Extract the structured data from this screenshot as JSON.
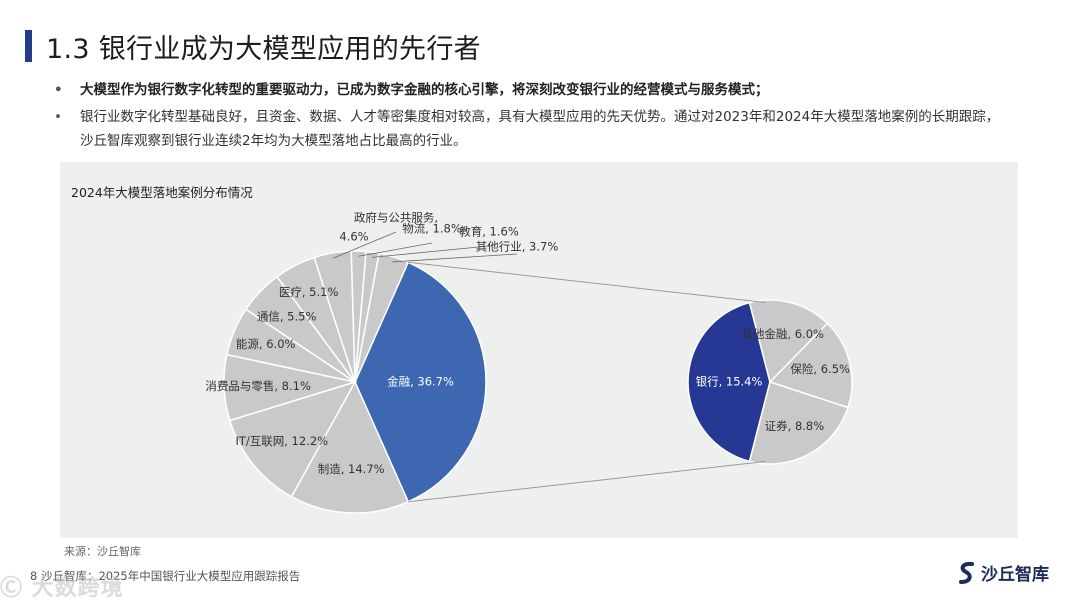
{
  "header": {
    "title": "1.3 银行业成为大模型应用的先行者"
  },
  "bullets": [
    "大模型作为银行数字化转型的重要驱动力，已成为数字金融的核心引擎，将深刻改变银行业的经营模式与服务模式；",
    "银行业数字化转型基础良好，且资金、数据、人才等密集度相对较高，具有大模型应用的先天优势。通过对2023年和2024年大模型落地案例的长期跟踪，沙丘智库观察到银行业连续2年均为大模型落地占比最高的行业。"
  ],
  "chart_data": {
    "type": "pie",
    "title": "2024年大模型落地案例分布情况",
    "colors": {
      "main": "#c9c9c9",
      "highlight": "#3d67b1",
      "bank": "#263893",
      "stroke": "#ffffff",
      "connector": "#999999"
    },
    "main_pie": [
      {
        "label": "金融, 36.7%",
        "value": 36.7
      },
      {
        "label": "制造, 14.7%",
        "value": 14.7
      },
      {
        "label": "IT/互联网, 12.2%",
        "value": 12.2
      },
      {
        "label": "消费品与零售, 8.1%",
        "value": 8.1
      },
      {
        "label": "能源, 6.0%",
        "value": 6.0
      },
      {
        "label": "通信, 5.5%",
        "value": 5.5
      },
      {
        "label": "医疗, 5.1%",
        "value": 5.1
      },
      {
        "label": "政府与公共服务,",
        "label2": "4.6%",
        "value": 4.6
      },
      {
        "label": "物流, 1.8%",
        "value": 1.8
      },
      {
        "label": "教育, 1.6%",
        "value": 1.6
      },
      {
        "label": "其他行业, 3.7%",
        "value": 3.7
      }
    ],
    "sub_pie": [
      {
        "label": "银行, 15.4%",
        "value": 15.4
      },
      {
        "label": "其他金融, 6.0%",
        "value": 6.0
      },
      {
        "label": "保险, 6.5%",
        "value": 6.5
      },
      {
        "label": "证券, 8.8%",
        "value": 8.8
      }
    ]
  },
  "source": "来源：沙丘智库",
  "footer": "8    沙丘智库：2025年中国银行业大模型应用跟踪报告",
  "watermark": "Ⓒ 大数跨境",
  "logo": {
    "text": "沙丘智库"
  }
}
